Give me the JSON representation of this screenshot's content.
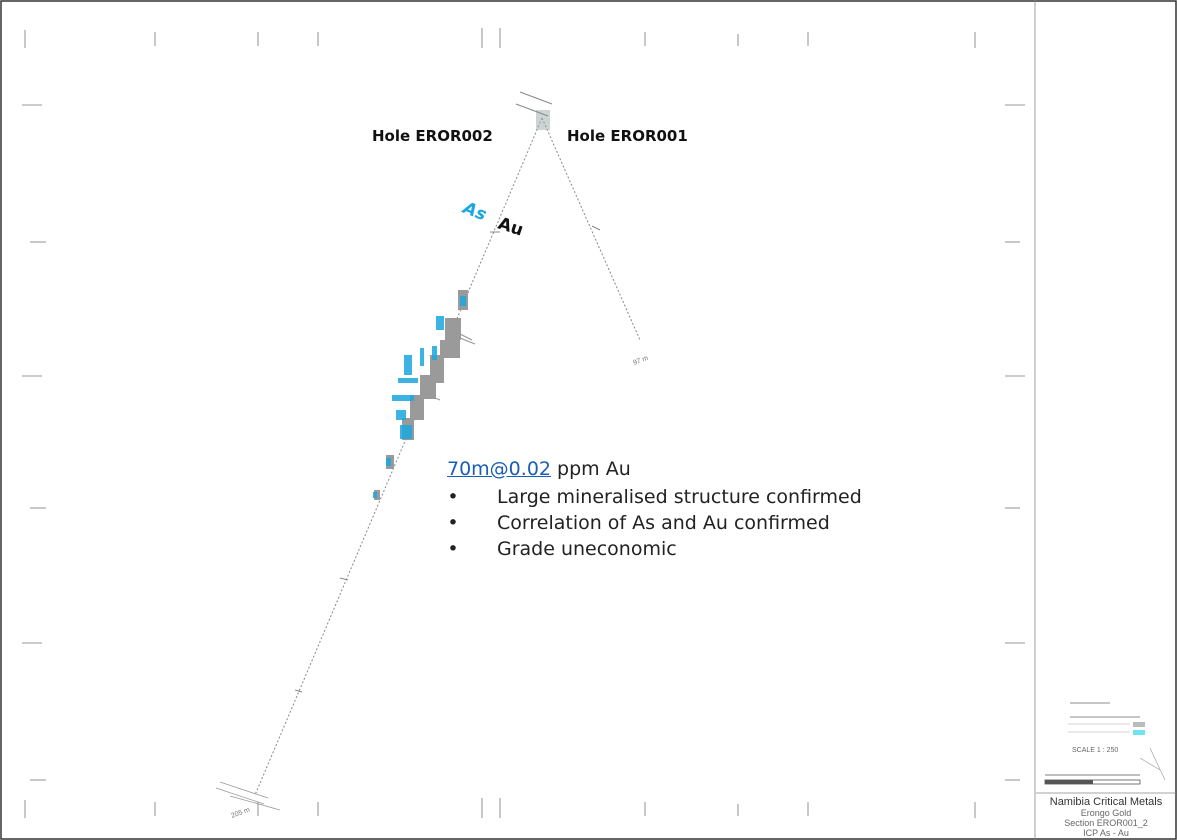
{
  "annotations": {
    "hole_left": "Hole EROR002",
    "hole_right": "Hole EROR001",
    "element_as": "As",
    "element_au": "Au"
  },
  "summary": {
    "intercept_link": "70m@0.02",
    "intercept_suffix": " ppm Au",
    "bullets": [
      "Large mineralised structure confirmed",
      "Correlation of As and Au confirmed",
      "Grade uneconomic"
    ]
  },
  "depth_labels": {
    "hole_right_end": "97 m",
    "hole_left_end": "205 m"
  },
  "title_block": {
    "company": "Namibia Critical Metals",
    "project": "Erongo Gold",
    "section": "Section EROR001_2",
    "elements": "ICP As - Au"
  },
  "scale_box": {
    "scale_label": "SCALE 1 : 250"
  },
  "colors": {
    "as_highlight": "#1aa7e0",
    "au_bars": "#9a9a9a",
    "link": "#1a5fb4"
  }
}
